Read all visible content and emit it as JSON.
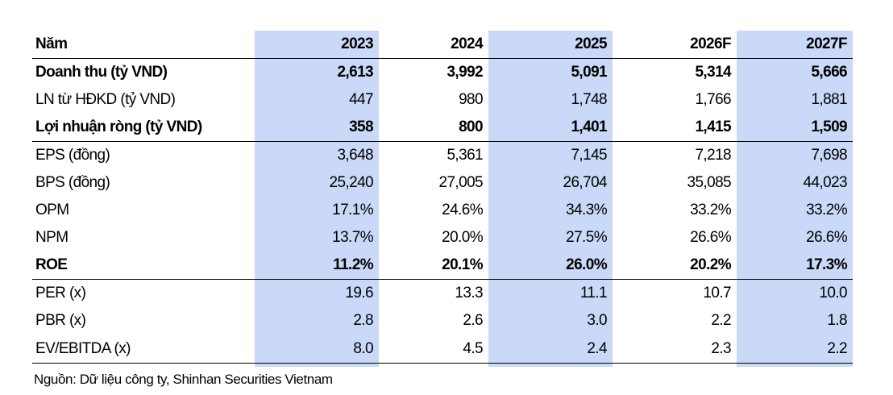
{
  "table": {
    "header": [
      "Năm",
      "2023",
      "2024",
      "2025",
      "2026F",
      "2027F"
    ],
    "rows": [
      {
        "label": "Doanh thu (tỷ VND)",
        "values": [
          "2,613",
          "3,992",
          "5,091",
          "5,314",
          "5,666"
        ]
      },
      {
        "label": "LN từ HĐKD (tỷ VND)",
        "values": [
          "447",
          "980",
          "1,748",
          "1,766",
          "1,881"
        ]
      },
      {
        "label": "Lợi nhuận ròng (tỷ VND)",
        "values": [
          "358",
          "800",
          "1,401",
          "1,415",
          "1,509"
        ]
      },
      {
        "label": "EPS (đồng)",
        "values": [
          "3,648",
          "5,361",
          "7,145",
          "7,218",
          "7,698"
        ]
      },
      {
        "label": "BPS (đồng)",
        "values": [
          "25,240",
          "27,005",
          "26,704",
          "35,085",
          "44,023"
        ]
      },
      {
        "label": "OPM",
        "values": [
          "17.1%",
          "24.6%",
          "34.3%",
          "33.2%",
          "33.2%"
        ]
      },
      {
        "label": "NPM",
        "values": [
          "13.7%",
          "20.0%",
          "27.5%",
          "26.6%",
          "26.6%"
        ]
      },
      {
        "label": "ROE",
        "values": [
          "11.2%",
          "20.1%",
          "26.0%",
          "20.2%",
          "17.3%"
        ]
      },
      {
        "label": "PER (x)",
        "values": [
          "19.6",
          "13.3",
          "11.1",
          "10.7",
          "10.0"
        ]
      },
      {
        "label": "PBR (x)",
        "values": [
          "2.8",
          "2.6",
          "3.0",
          "2.2",
          "1.8"
        ]
      },
      {
        "label": "EV/EBITDA (x)",
        "values": [
          "8.0",
          "4.5",
          "2.4",
          "2.3",
          "2.2"
        ]
      }
    ]
  },
  "source": "Nguồn: Dữ liệu công ty, Shinhan Securities Vietnam",
  "colors": {
    "band": "#c9d9f7",
    "rule": "#000000"
  }
}
